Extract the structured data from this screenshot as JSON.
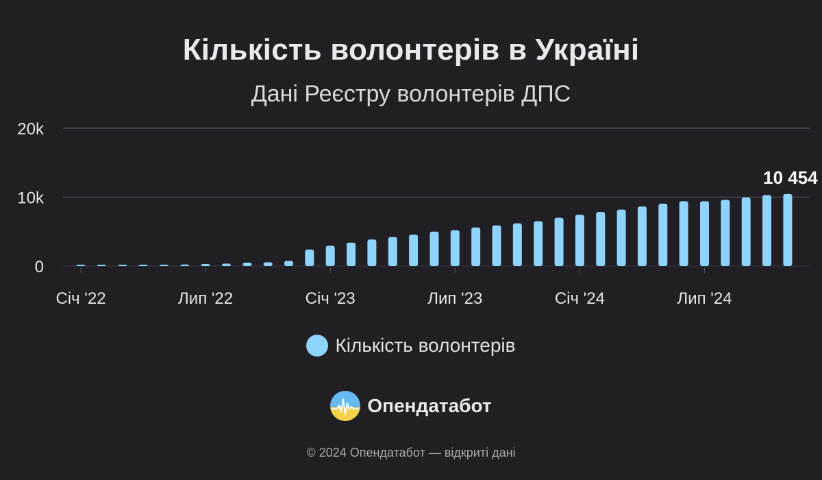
{
  "header": {
    "title": "Кількість волонтерів в Україні",
    "subtitle": "Дані Реєстру волонтерів ДПС"
  },
  "legend": {
    "label": "Кількість волонтерів",
    "color": "#8fd3ff"
  },
  "brand": {
    "name": "Опендатабот",
    "logo_icon": "opendatabot-logo-icon"
  },
  "footer": {
    "text": "© 2024 Опендатабот — відкриті дані"
  },
  "chart_data": {
    "type": "bar",
    "y_ticks": [
      0,
      10000,
      20000
    ],
    "y_tick_labels": [
      "0",
      "10k",
      "20k"
    ],
    "ylim": [
      0,
      20000
    ],
    "grid": true,
    "legend_position": "bottom-center",
    "bar_color": "#8fd3ff",
    "x_tick_labels": [
      {
        "index": 0,
        "label": "Січ '22"
      },
      {
        "index": 6,
        "label": "Лип '22"
      },
      {
        "index": 12,
        "label": "Січ '23"
      },
      {
        "index": 18,
        "label": "Лип '23"
      },
      {
        "index": 24,
        "label": "Січ '24"
      },
      {
        "index": 30,
        "label": "Лип '24"
      }
    ],
    "series": [
      {
        "name": "Кількість волонтерів",
        "values": [
          150,
          150,
          150,
          180,
          200,
          220,
          300,
          350,
          500,
          550,
          750,
          2400,
          2950,
          3400,
          3850,
          4200,
          4550,
          5000,
          5200,
          5600,
          5900,
          6200,
          6500,
          7000,
          7450,
          7850,
          8200,
          8650,
          9050,
          9400,
          9400,
          9600,
          9950,
          10300,
          10454
        ]
      }
    ],
    "annotations": [
      {
        "index": 34,
        "text": "10 454"
      }
    ]
  }
}
